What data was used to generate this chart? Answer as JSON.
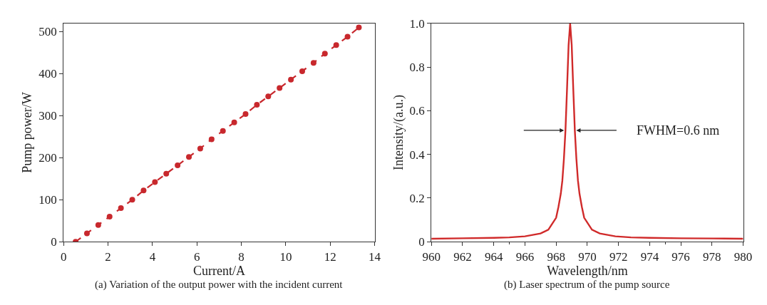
{
  "chart_data": [
    {
      "type": "line",
      "xlabel": "Current/A",
      "ylabel": "Pump power/W",
      "annotations": [
        "(a) Variation of the output power with the incident current"
      ],
      "x": [
        0.54,
        1.05,
        1.56,
        2.07,
        2.58,
        3.09,
        3.6,
        4.11,
        4.62,
        5.13,
        5.64,
        6.15,
        6.66,
        7.17,
        7.68,
        8.19,
        8.7,
        9.21,
        9.72,
        10.23,
        10.74,
        11.25,
        11.76,
        12.27,
        12.78,
        13.29
      ],
      "series": [
        {
          "color": "#c8282d",
          "values": [
            0,
            20,
            40,
            60,
            80,
            100,
            122,
            142,
            162,
            182,
            202,
            222,
            244,
            264,
            284,
            304,
            326,
            346,
            366,
            386,
            406,
            426,
            448,
            468,
            488,
            510
          ]
        }
      ],
      "xlim": [
        0,
        14
      ],
      "xticks": [
        0,
        2,
        4,
        6,
        8,
        10,
        12,
        14
      ],
      "ylim": [
        0,
        520
      ],
      "yticks": [
        0,
        100,
        200,
        300,
        400,
        500
      ],
      "marker": "circle",
      "line_style": "dashed"
    },
    {
      "type": "line",
      "xlabel": "Wavelength/nm",
      "ylabel": "Intensity/(a.u.)",
      "annotations": [
        "FWHM=0.6 nm",
        "(b) Laser spectrum of the pump source"
      ],
      "x": [
        960,
        962,
        964,
        965,
        966,
        967,
        967.5,
        968,
        968.15,
        968.3,
        968.4,
        968.5,
        968.6,
        968.7,
        968.8,
        968.9,
        969.0,
        969.1,
        969.2,
        969.3,
        969.4,
        969.5,
        969.65,
        969.8,
        970.3,
        970.8,
        971.8,
        972.8,
        974,
        976,
        978,
        980
      ],
      "series": [
        {
          "color": "#d02a2a",
          "values": [
            0.014,
            0.016,
            0.018,
            0.02,
            0.025,
            0.038,
            0.055,
            0.11,
            0.16,
            0.22,
            0.28,
            0.38,
            0.51,
            0.7,
            0.9,
            1.0,
            0.9,
            0.7,
            0.51,
            0.38,
            0.28,
            0.22,
            0.16,
            0.11,
            0.055,
            0.038,
            0.025,
            0.02,
            0.018,
            0.016,
            0.015,
            0.014
          ]
        }
      ],
      "xlim": [
        960,
        980
      ],
      "xticks": [
        960,
        962,
        964,
        966,
        968,
        970,
        972,
        974,
        976,
        978,
        980
      ],
      "ylim": [
        0,
        1.0
      ],
      "yticks": [
        0,
        0.2,
        0.4,
        0.6,
        0.8,
        {
          "value": 1.0,
          "label": "1.0"
        }
      ],
      "marker": "none",
      "line_style": "solid"
    }
  ]
}
